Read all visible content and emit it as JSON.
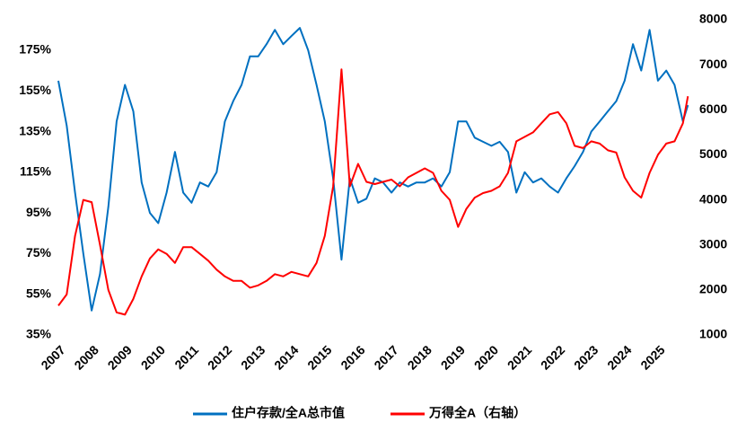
{
  "chart_data": {
    "type": "line",
    "x": [
      2007,
      2007.25,
      2007.5,
      2007.75,
      2008,
      2008.25,
      2008.5,
      2008.75,
      2009,
      2009.25,
      2009.5,
      2009.75,
      2010,
      2010.25,
      2010.5,
      2010.75,
      2011,
      2011.25,
      2011.5,
      2011.75,
      2012,
      2012.25,
      2012.5,
      2012.75,
      2013,
      2013.25,
      2013.5,
      2013.75,
      2014,
      2014.25,
      2014.5,
      2014.75,
      2015,
      2015.25,
      2015.5,
      2015.75,
      2016,
      2016.25,
      2016.5,
      2016.75,
      2017,
      2017.25,
      2017.5,
      2017.75,
      2018,
      2018.25,
      2018.5,
      2018.75,
      2019,
      2019.25,
      2019.5,
      2019.75,
      2020,
      2020.25,
      2020.5,
      2020.75,
      2021,
      2021.25,
      2021.5,
      2021.75,
      2022,
      2022.25,
      2022.5,
      2022.75,
      2023,
      2023.25,
      2023.5,
      2023.75,
      2024,
      2024.25,
      2024.5,
      2024.75,
      2025,
      2025.25,
      2025.5,
      2025.75,
      2025.9
    ],
    "series": [
      {
        "name": "住户存款/全A总市值",
        "color": "#0070c0",
        "axis": "y",
        "values": [
          160,
          138,
          105,
          75,
          47,
          65,
          98,
          140,
          158,
          145,
          110,
          95,
          90,
          105,
          125,
          105,
          100,
          110,
          108,
          115,
          140,
          150,
          158,
          172,
          172,
          178,
          185,
          178,
          182,
          186,
          175,
          158,
          140,
          112,
          72,
          112,
          100,
          102,
          112,
          110,
          105,
          110,
          108,
          110,
          110,
          112,
          108,
          115,
          140,
          140,
          132,
          130,
          128,
          130,
          125,
          105,
          115,
          110,
          112,
          108,
          105,
          112,
          118,
          125,
          135,
          140,
          145,
          150,
          160,
          178,
          165,
          185,
          160,
          165,
          158,
          140,
          148
        ]
      },
      {
        "name": "万得全A（右轴）",
        "color": "#ff0000",
        "axis": "y2",
        "values": [
          1650,
          1900,
          3200,
          4000,
          3950,
          3000,
          2000,
          1500,
          1450,
          1800,
          2300,
          2700,
          2900,
          2800,
          2600,
          2950,
          2950,
          2800,
          2650,
          2450,
          2300,
          2200,
          2200,
          2050,
          2100,
          2200,
          2350,
          2300,
          2400,
          2350,
          2300,
          2600,
          3200,
          4300,
          6900,
          4300,
          4800,
          4400,
          4350,
          4400,
          4450,
          4300,
          4500,
          4600,
          4700,
          4600,
          4200,
          4000,
          3400,
          3800,
          4050,
          4150,
          4200,
          4300,
          4600,
          5300,
          5400,
          5500,
          5700,
          5900,
          5950,
          5700,
          5200,
          5150,
          5300,
          5250,
          5100,
          5050,
          4500,
          4200,
          4050,
          4600,
          5000,
          5250,
          5300,
          5700,
          6300
        ]
      }
    ],
    "xlim": [
      2007,
      2026
    ],
    "xticks": [
      2007,
      2008,
      2009,
      2010,
      2011,
      2012,
      2013,
      2014,
      2015,
      2016,
      2017,
      2018,
      2019,
      2020,
      2021,
      2022,
      2023,
      2024,
      2025
    ],
    "ylim": [
      35,
      190
    ],
    "yticks": [
      {
        "value": 35,
        "label": "35%"
      },
      {
        "value": 55,
        "label": "55%"
      },
      {
        "value": 75,
        "label": "75%"
      },
      {
        "value": 95,
        "label": "95%"
      },
      {
        "value": 115,
        "label": "115%"
      },
      {
        "value": 135,
        "label": "135%"
      },
      {
        "value": 155,
        "label": "155%"
      },
      {
        "value": 175,
        "label": "175%"
      }
    ],
    "y2lim": [
      1000,
      8000
    ],
    "y2ticks": [
      1000,
      2000,
      3000,
      4000,
      5000,
      6000,
      7000,
      8000
    ],
    "grid": false
  }
}
